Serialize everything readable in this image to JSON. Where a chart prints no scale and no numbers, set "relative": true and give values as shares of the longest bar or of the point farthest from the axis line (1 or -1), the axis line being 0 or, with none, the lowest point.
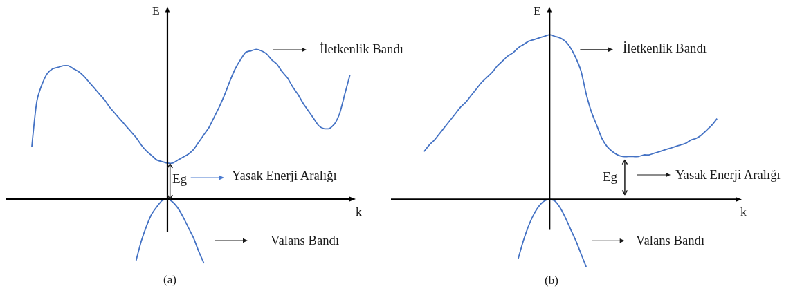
{
  "chart_data": [
    {
      "type": "line",
      "title": "(a)",
      "xlabel": "k",
      "ylabel": "E",
      "relative": true,
      "line_style": "solid",
      "categories": [
        null,
        null,
        null,
        null,
        null,
        null,
        null,
        null,
        null,
        null,
        null,
        null,
        null,
        null,
        null,
        null,
        null,
        null,
        null,
        null,
        null,
        null,
        null,
        null,
        null,
        null,
        null,
        null,
        null,
        null,
        null,
        null,
        null,
        null,
        null,
        null,
        null,
        null,
        null,
        null,
        null,
        null,
        null,
        null,
        null,
        null,
        null,
        null,
        null,
        null,
        null,
        null,
        null,
        null,
        null,
        null,
        null,
        null,
        null,
        null,
        null,
        null
      ],
      "series": [
        {
          "color": "#4472c4",
          "values": [
            0.35,
            0.66,
            0.77,
            0.84,
            0.87,
            0.88,
            0.89,
            0.89,
            0.87,
            0.85,
            0.82,
            0.78,
            0.74,
            0.7,
            0.66,
            0.61,
            0.57,
            0.53,
            0.49,
            0.45,
            0.41,
            0.36,
            0.32,
            0.29,
            0.26,
            0.25,
            0.24,
            0.24,
            0.26,
            0.28,
            0.3,
            0.33,
            0.38,
            0.43,
            0.48,
            0.55,
            0.62,
            0.7,
            0.79,
            0.87,
            0.93,
            0.98,
            0.99,
            1,
            0.99,
            0.97,
            0.93,
            0.9,
            0.85,
            0.81,
            0.75,
            0.7,
            0.64,
            0.59,
            0.54,
            0.49,
            0.47,
            0.47,
            0.5,
            0.57,
            0.7,
            0.83
          ]
        },
        {
          "color": "#4472c4",
          "values": [
            null,
            null,
            null,
            null,
            null,
            null,
            null,
            null,
            null,
            null,
            null,
            null,
            null,
            null,
            null,
            null,
            null,
            null,
            null,
            null,
            -0.41,
            -0.28,
            -0.18,
            -0.1,
            -0.05,
            -0.01,
            0,
            -0.02,
            -0.06,
            -0.12,
            -0.19,
            -0.26,
            -0.35,
            -0.43,
            null,
            null,
            null,
            null,
            null,
            null,
            null,
            null,
            null,
            null,
            null,
            null,
            null,
            null,
            null,
            null,
            null,
            null,
            null,
            null,
            null,
            null,
            null,
            null,
            null,
            null,
            null,
            null
          ]
        }
      ],
      "annotations": [
        "İletkenlik Bandı",
        "Eg",
        "Yasak Enerji Aralığı",
        "Valans Bandı"
      ]
    },
    {
      "type": "line",
      "title": "(b)",
      "xlabel": "k",
      "ylabel": "E",
      "relative": true,
      "line_style": "solid",
      "categories": [
        null,
        null,
        null,
        null,
        null,
        null,
        null,
        null,
        null,
        null,
        null,
        null,
        null,
        null,
        null,
        null,
        null,
        null,
        null,
        null,
        null,
        null,
        null,
        null,
        null,
        null,
        null,
        null,
        null,
        null,
        null,
        null,
        null,
        null,
        null,
        null,
        null,
        null,
        null,
        null,
        null,
        null,
        null,
        null,
        null,
        null,
        null,
        null,
        null,
        null,
        null,
        null,
        null,
        null,
        null,
        null,
        null
      ],
      "series": [
        {
          "color": "#4472c4",
          "values": [
            0.29,
            0.33,
            0.36,
            0.4,
            0.44,
            0.48,
            0.52,
            0.56,
            0.59,
            0.63,
            0.67,
            0.71,
            0.74,
            0.77,
            0.81,
            0.84,
            0.87,
            0.89,
            0.92,
            0.94,
            0.96,
            0.97,
            0.98,
            0.99,
            1,
            0.99,
            0.98,
            0.96,
            0.92,
            0.86,
            0.78,
            0.64,
            0.53,
            0.45,
            0.37,
            0.32,
            0.29,
            0.27,
            0.26,
            0.26,
            0.26,
            0.26,
            0.27,
            0.27,
            0.28,
            0.29,
            0.3,
            0.31,
            0.32,
            0.33,
            0.34,
            0.36,
            0.37,
            0.39,
            0.42,
            0.45,
            0.49
          ]
        },
        {
          "color": "#4472c4",
          "values": [
            null,
            null,
            null,
            null,
            null,
            null,
            null,
            null,
            null,
            null,
            null,
            null,
            null,
            null,
            null,
            null,
            null,
            null,
            -0.36,
            -0.25,
            -0.16,
            -0.09,
            -0.04,
            -0.01,
            0,
            -0.01,
            -0.05,
            -0.11,
            -0.18,
            -0.25,
            -0.33,
            -0.41,
            null,
            null,
            null,
            null,
            null,
            null,
            null,
            null,
            null,
            null,
            null,
            null,
            null,
            null,
            null,
            null,
            null,
            null,
            null,
            null,
            null,
            null,
            null,
            null,
            null
          ]
        }
      ],
      "annotations": [
        "İletkenlik Bandı",
        "Eg",
        "Yasak Enerji Aralığı",
        "Valans Bandı"
      ]
    }
  ]
}
